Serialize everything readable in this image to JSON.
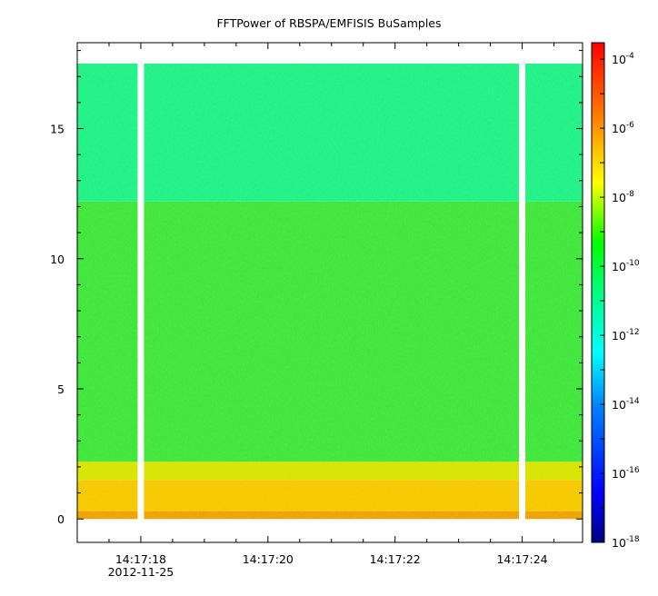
{
  "chart_data": {
    "type": "heatmap",
    "title": "FFTPower of RBSPA/EMFISIS  BuSamples",
    "xlabel": "",
    "ylabel": "",
    "x_ticks": [
      "14:17:18",
      "14:17:20",
      "14:17:22",
      "14:17:24"
    ],
    "x_tick_values_sec": [
      18,
      20,
      22,
      24
    ],
    "x_date_label": "2012-11-25",
    "xlim_sec": [
      17.0,
      24.95
    ],
    "data_gaps_sec": [
      [
        17.95,
        18.05
      ],
      [
        23.95,
        24.05
      ]
    ],
    "y_ticks": [
      "0",
      "5",
      "10",
      "15"
    ],
    "y_tick_values": [
      0,
      5,
      10,
      15
    ],
    "ylim": [
      -0.9,
      18.3
    ],
    "data_yrange": [
      0,
      17.5
    ],
    "colorbar": {
      "scale": "log",
      "range": [
        1e-18,
        0.0003
      ],
      "tick_values": [
        -18,
        -16,
        -14,
        -12,
        -10,
        -8,
        -6,
        -4
      ],
      "tick_labels": [
        "10-18",
        "10-16",
        "10-14",
        "10-12",
        "10-10",
        "10-8",
        "10-6",
        "10-4"
      ],
      "colors": [
        "#000080",
        "#0000ff",
        "#00ffff",
        "#00ff00",
        "#ffff00",
        "#ff8000",
        "#ff0000"
      ]
    },
    "bands": [
      {
        "y_range": [
          0,
          0.3
        ],
        "level": "1e-8",
        "color": "#f0a000"
      },
      {
        "y_range": [
          0.3,
          1.5
        ],
        "level": "1e-8",
        "color": "#f6c800"
      },
      {
        "y_range": [
          1.5,
          2.2
        ],
        "level": "1e-9",
        "color": "#d8e400"
      },
      {
        "y_range": [
          2.2,
          12.2
        ],
        "level": "1e-10",
        "color": "#3be63c"
      },
      {
        "y_range": [
          12.2,
          17.5
        ],
        "level": "1e-12",
        "color": "#1cf28a"
      }
    ]
  }
}
